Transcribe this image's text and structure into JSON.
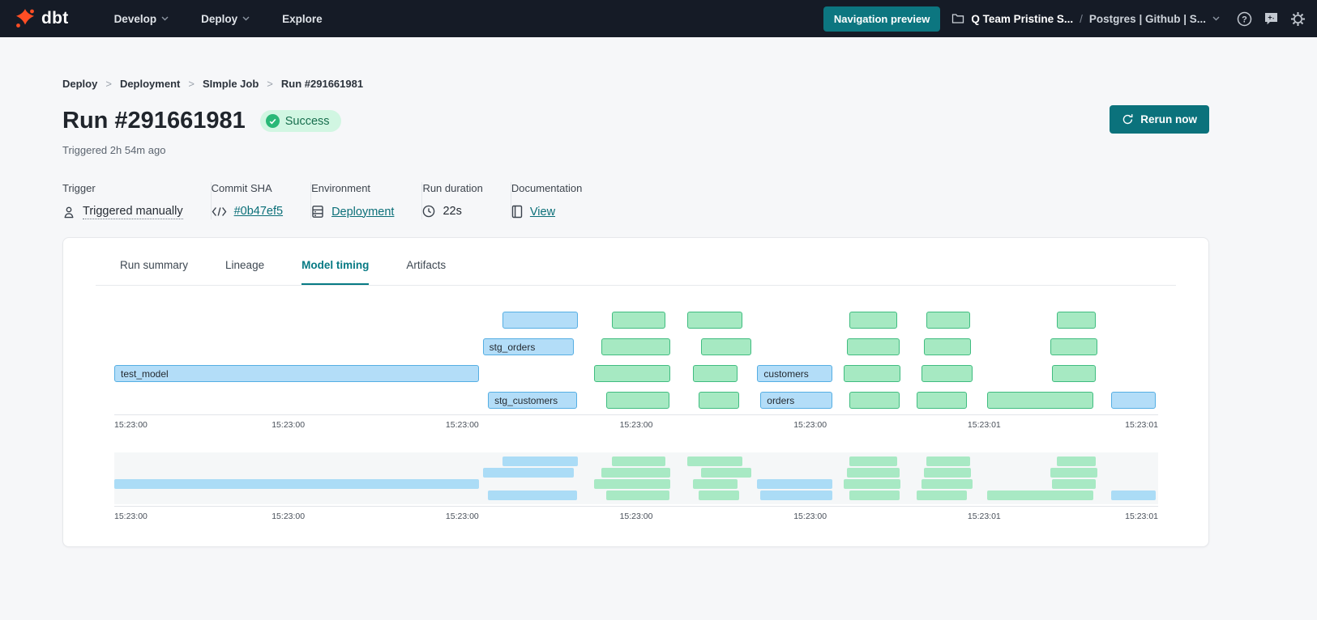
{
  "navbar": {
    "brand": "dbt",
    "items": [
      {
        "label": "Develop",
        "has_chevron": true
      },
      {
        "label": "Deploy",
        "has_chevron": true
      },
      {
        "label": "Explore",
        "has_chevron": false
      }
    ],
    "preview_button": "Navigation preview",
    "project": {
      "team": "Q Team Pristine S...",
      "separator": "/",
      "env": "Postgres | Github | S..."
    },
    "icons": [
      "folder-icon",
      "help-icon",
      "feedback-icon",
      "gear-icon"
    ]
  },
  "breadcrumb": {
    "items": [
      "Deploy",
      "Deployment",
      "SImple Job",
      "Run #291661981"
    ],
    "separator": ">"
  },
  "header": {
    "title": "Run #291661981",
    "status": "Success",
    "triggered": "Triggered 2h 54m ago",
    "rerun_label": "Rerun now"
  },
  "meta": [
    {
      "label": "Trigger",
      "value": "Triggered manually",
      "icon": "person-icon"
    },
    {
      "label": "Commit SHA",
      "value": "#0b47ef5",
      "icon": "code-icon",
      "is_link": true
    },
    {
      "label": "Environment",
      "value": "Deployment",
      "icon": "database-icon",
      "is_link": true
    },
    {
      "label": "Run duration",
      "value": "22s",
      "icon": "clock-icon"
    },
    {
      "label": "Documentation",
      "value": "View",
      "icon": "document-icon",
      "is_link": true
    }
  ],
  "tabs": [
    {
      "label": "Run summary",
      "active": false
    },
    {
      "label": "Lineage",
      "active": false
    },
    {
      "label": "Model timing",
      "active": true
    },
    {
      "label": "Artifacts",
      "active": false
    }
  ],
  "chart_data": {
    "type": "gantt",
    "title": "Model timing",
    "x_axis": "time of day",
    "axis_ticks": [
      "15:23:00",
      "15:23:00",
      "15:23:00",
      "15:23:00",
      "15:23:00",
      "15:23:01",
      "15:23:01"
    ],
    "colors": {
      "blue_fill": "#b3ddf8",
      "blue_border": "#55aee3",
      "green_fill": "#a6e9c2",
      "green_border": "#40bc80",
      "overview_bg": "#f5f7f8"
    },
    "rows": [
      {
        "bars": [
          {
            "type": "blue",
            "start": 37.2,
            "width": 7.2
          },
          {
            "type": "green",
            "start": 47.7,
            "width": 5.1
          },
          {
            "type": "green",
            "start": 54.9,
            "width": 5.3
          },
          {
            "type": "green",
            "start": 70.4,
            "width": 4.6
          },
          {
            "type": "green",
            "start": 77.8,
            "width": 4.2
          },
          {
            "type": "green",
            "start": 90.3,
            "width": 3.7
          }
        ]
      },
      {
        "bars": [
          {
            "type": "blue",
            "start": 35.3,
            "width": 8.7,
            "label": "stg_orders"
          },
          {
            "type": "green",
            "start": 46.7,
            "width": 6.6
          },
          {
            "type": "green",
            "start": 56.2,
            "width": 4.8
          },
          {
            "type": "green",
            "start": 70.2,
            "width": 5.0
          },
          {
            "type": "green",
            "start": 77.6,
            "width": 4.5
          },
          {
            "type": "green",
            "start": 89.7,
            "width": 4.5
          }
        ]
      },
      {
        "bars": [
          {
            "type": "blue",
            "start": 0.0,
            "width": 34.9,
            "label": "test_model"
          },
          {
            "type": "green",
            "start": 46.0,
            "width": 7.3
          },
          {
            "type": "green",
            "start": 55.4,
            "width": 4.3
          },
          {
            "type": "blue",
            "start": 61.6,
            "width": 7.2,
            "label": "customers"
          },
          {
            "type": "green",
            "start": 69.9,
            "width": 5.4
          },
          {
            "type": "green",
            "start": 77.3,
            "width": 4.9
          },
          {
            "type": "green",
            "start": 89.8,
            "width": 4.2
          }
        ]
      },
      {
        "bars": [
          {
            "type": "blue",
            "start": 35.8,
            "width": 8.5,
            "label": "stg_customers"
          },
          {
            "type": "green",
            "start": 47.1,
            "width": 6.1
          },
          {
            "type": "green",
            "start": 56.0,
            "width": 3.9
          },
          {
            "type": "blue",
            "start": 61.9,
            "width": 6.9,
            "label": "orders"
          },
          {
            "type": "green",
            "start": 70.4,
            "width": 4.8
          },
          {
            "type": "green",
            "start": 76.9,
            "width": 4.8
          },
          {
            "type": "green",
            "start": 83.6,
            "width": 10.2
          },
          {
            "type": "blue",
            "start": 95.5,
            "width": 4.3
          }
        ]
      }
    ]
  }
}
